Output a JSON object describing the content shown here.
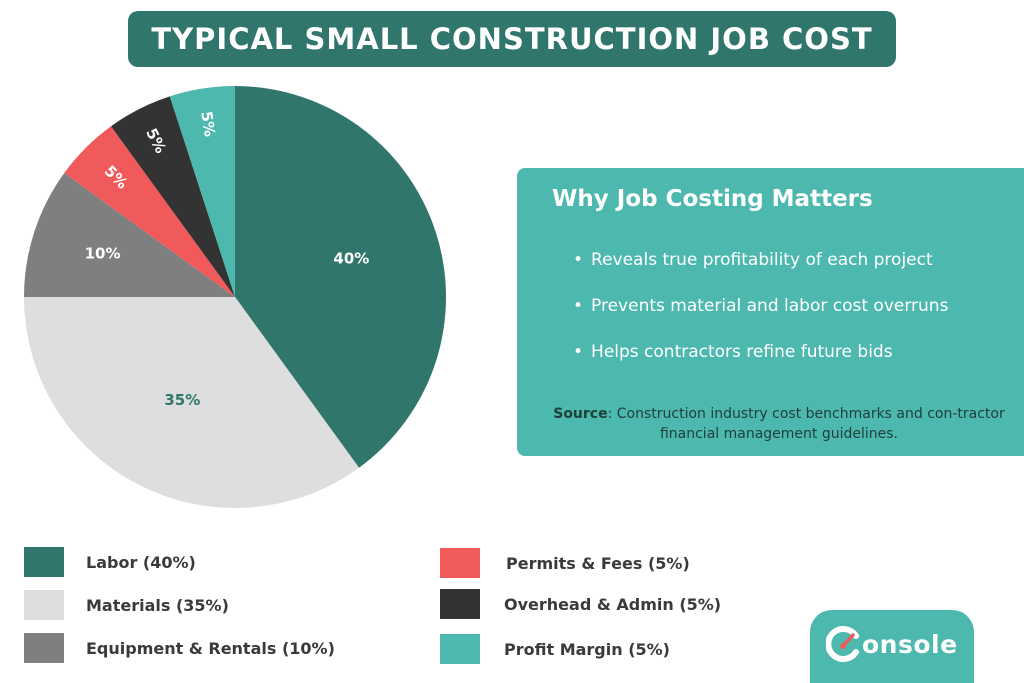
{
  "title": "TYPICAL SMALL CONSTRUCTION JOB COST",
  "chart_data": {
    "type": "pie",
    "title": "TYPICAL SMALL CONSTRUCTION JOB COST",
    "categories": [
      "Labor",
      "Materials",
      "Equipment & Rentals",
      "Permits & Fees",
      "Overhead & Admin",
      "Profit Margin"
    ],
    "values": [
      40,
      35,
      10,
      5,
      5,
      5
    ],
    "slice_labels": [
      "40%",
      "35%",
      "10%",
      "5%",
      "5%",
      "5%"
    ],
    "colors": [
      "#30766d",
      "#dedede",
      "#7f7f7f",
      "#f15a5a",
      "#333333",
      "#4db8ae"
    ],
    "label_colors": [
      "#ffffff",
      "#30766d",
      "#ffffff",
      "#ffffff",
      "#ffffff",
      "#ffffff"
    ],
    "legend": [
      {
        "label": "Labor (40%)",
        "color": "#30766d"
      },
      {
        "label": "Materials (35%)",
        "color": "#dedede"
      },
      {
        "label": "Equipment & Rentals (10%)",
        "color": "#7f7f7f"
      },
      {
        "label": "Permits & Fees (5%)",
        "color": "#f15a5a"
      },
      {
        "label": "Overhead & Admin (5%)",
        "color": "#333333"
      },
      {
        "label": "Profit Margin (5%)",
        "color": "#4db8ae"
      }
    ],
    "legend_placement": "bottom"
  },
  "info": {
    "title": "Why Job Costing Matters",
    "bullets": [
      "Reveals true profitability of each project",
      "Prevents material and labor cost overruns",
      "Helps contractors refine future bids"
    ],
    "source_label": "Source",
    "source_text": ": Construction industry cost benchmarks and con-tractor financial management guidelines."
  },
  "logo": {
    "text": "onsole",
    "brand": "Console",
    "color": "#4db8ae"
  }
}
